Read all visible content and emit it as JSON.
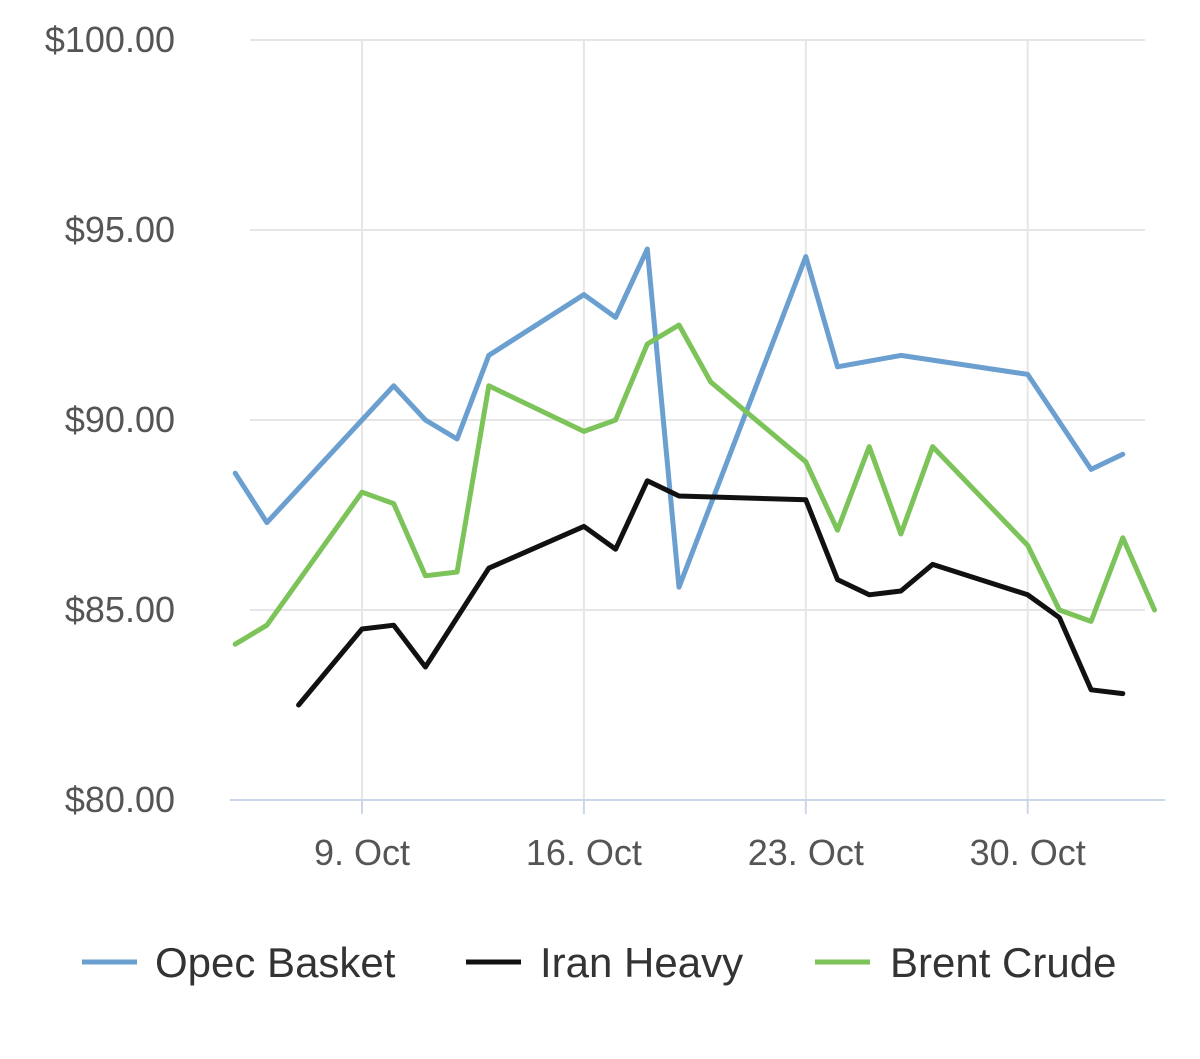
{
  "chart_data": {
    "type": "line",
    "title": "",
    "xlabel": "",
    "ylabel": "",
    "x_start": "2017-10-05",
    "x_end": "2017-11-05",
    "x_ticks": [
      {
        "date": "2017-10-09",
        "label": "9. Oct"
      },
      {
        "date": "2017-10-16",
        "label": "16. Oct"
      },
      {
        "date": "2017-10-23",
        "label": "23. Oct"
      },
      {
        "date": "2017-10-30",
        "label": "30. Oct"
      }
    ],
    "y_ticks": [
      {
        "value": 80,
        "label": "$80.00"
      },
      {
        "value": 85,
        "label": "$85.00"
      },
      {
        "value": 90,
        "label": "$90.00"
      },
      {
        "value": 95,
        "label": "$95.00"
      },
      {
        "value": 100,
        "label": "$100.00"
      }
    ],
    "ylim": [
      80,
      100
    ],
    "grid": true,
    "legend_position": "bottom",
    "series": [
      {
        "name": "Opec Basket",
        "color": "#6a9fd0",
        "points": [
          [
            "2017-10-05",
            88.6
          ],
          [
            "2017-10-06",
            87.3
          ],
          [
            "2017-10-09",
            90.0
          ],
          [
            "2017-10-10",
            90.9
          ],
          [
            "2017-10-11",
            90.0
          ],
          [
            "2017-10-12",
            89.5
          ],
          [
            "2017-10-13",
            91.7
          ],
          [
            "2017-10-16",
            93.3
          ],
          [
            "2017-10-17",
            92.7
          ],
          [
            "2017-10-18",
            94.5
          ],
          [
            "2017-10-19",
            85.6
          ],
          [
            "2017-10-23",
            94.3
          ],
          [
            "2017-10-24",
            91.4
          ],
          [
            "2017-10-26",
            91.7
          ],
          [
            "2017-10-30",
            91.2
          ],
          [
            "2017-11-01",
            88.7
          ],
          [
            "2017-11-02",
            89.1
          ]
        ]
      },
      {
        "name": "Iran Heavy",
        "color": "#111111",
        "points": [
          [
            "2017-10-07",
            82.5
          ],
          [
            "2017-10-09",
            84.5
          ],
          [
            "2017-10-10",
            84.6
          ],
          [
            "2017-10-11",
            83.5
          ],
          [
            "2017-10-13",
            86.1
          ],
          [
            "2017-10-16",
            87.2
          ],
          [
            "2017-10-17",
            86.6
          ],
          [
            "2017-10-18",
            88.4
          ],
          [
            "2017-10-19",
            88.0
          ],
          [
            "2017-10-23",
            87.9
          ],
          [
            "2017-10-24",
            85.8
          ],
          [
            "2017-10-25",
            85.4
          ],
          [
            "2017-10-26",
            85.5
          ],
          [
            "2017-10-27",
            86.2
          ],
          [
            "2017-10-30",
            85.4
          ],
          [
            "2017-10-31",
            84.8
          ],
          [
            "2017-11-01",
            82.9
          ],
          [
            "2017-11-02",
            82.8
          ]
        ]
      },
      {
        "name": "Brent Crude",
        "color": "#7cc35a",
        "points": [
          [
            "2017-10-05",
            84.1
          ],
          [
            "2017-10-06",
            84.6
          ],
          [
            "2017-10-09",
            88.1
          ],
          [
            "2017-10-10",
            87.8
          ],
          [
            "2017-10-11",
            85.9
          ],
          [
            "2017-10-12",
            86.0
          ],
          [
            "2017-10-13",
            90.9
          ],
          [
            "2017-10-16",
            89.7
          ],
          [
            "2017-10-17",
            90.0
          ],
          [
            "2017-10-18",
            92.0
          ],
          [
            "2017-10-19",
            92.5
          ],
          [
            "2017-10-20",
            91.0
          ],
          [
            "2017-10-23",
            88.9
          ],
          [
            "2017-10-24",
            87.1
          ],
          [
            "2017-10-25",
            89.3
          ],
          [
            "2017-10-26",
            87.0
          ],
          [
            "2017-10-27",
            89.3
          ],
          [
            "2017-10-30",
            86.7
          ],
          [
            "2017-10-31",
            85.0
          ],
          [
            "2017-11-01",
            84.7
          ],
          [
            "2017-11-02",
            86.9
          ],
          [
            "2017-11-03",
            85.0
          ]
        ]
      }
    ]
  }
}
